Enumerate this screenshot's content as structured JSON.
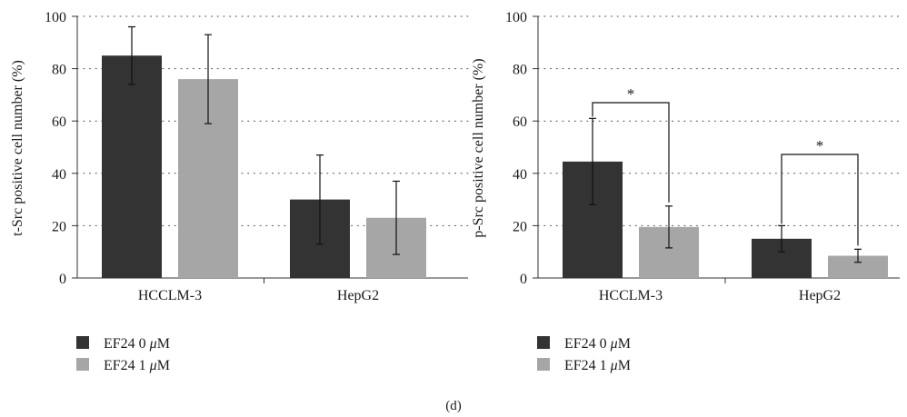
{
  "figure_label": "(d)",
  "chart_data": [
    {
      "type": "bar",
      "ylabel": "t-Src positive cell number (%)",
      "xlabel": "",
      "categories": [
        "HCCLM-3",
        "HepG2"
      ],
      "ylim": [
        0,
        100
      ],
      "yticks": [
        0,
        20,
        40,
        60,
        80,
        100
      ],
      "grid": "horizontal dotted",
      "legend_position": "bottom-left",
      "series": [
        {
          "name": "EF24 0 μM",
          "color": "#333333",
          "values": [
            85,
            30
          ],
          "errors": [
            11,
            17
          ]
        },
        {
          "name": "EF24 1 μM",
          "color": "#a6a6a6",
          "values": [
            76,
            23
          ],
          "errors": [
            17,
            14
          ]
        }
      ],
      "significance": []
    },
    {
      "type": "bar",
      "ylabel": "p-Src positive cell number (%)",
      "xlabel": "",
      "categories": [
        "HCCLM-3",
        "HepG2"
      ],
      "ylim": [
        0,
        100
      ],
      "yticks": [
        0,
        20,
        40,
        60,
        80,
        100
      ],
      "grid": "horizontal dotted",
      "legend_position": "bottom-left",
      "series": [
        {
          "name": "EF24 0 μM",
          "color": "#333333",
          "values": [
            44.5,
            15
          ],
          "errors": [
            16.5,
            5
          ]
        },
        {
          "name": "EF24 1 μM",
          "color": "#a6a6a6",
          "values": [
            19.5,
            8.5
          ],
          "errors": [
            8,
            2.5
          ]
        }
      ],
      "significance": [
        {
          "category_index": 0,
          "label": "*"
        },
        {
          "category_index": 1,
          "label": "*"
        }
      ]
    }
  ]
}
